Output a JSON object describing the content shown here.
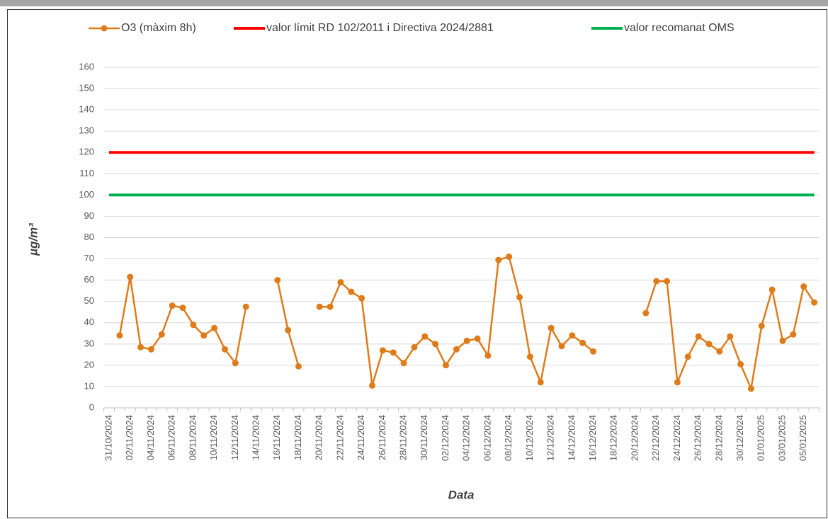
{
  "chart_data": {
    "type": "line",
    "x_label": "Data",
    "y_label": "µg/m³",
    "categories": [
      "31/10/2024",
      null,
      "02/11/2024",
      null,
      "04/11/2024",
      null,
      "06/11/2024",
      null,
      "08/11/2024",
      null,
      "10/11/2024",
      null,
      "12/11/2024",
      null,
      "14/11/2024",
      null,
      "16/11/2024",
      null,
      "18/11/2024",
      null,
      "20/11/2024",
      null,
      "22/11/2024",
      null,
      "24/11/2024",
      null,
      "26/11/2024",
      null,
      "28/11/2024",
      null,
      "30/11/2024",
      null,
      "02/12/2024",
      null,
      "04/12/2024",
      null,
      "06/12/2024",
      null,
      "08/12/2024",
      null,
      "10/12/2024",
      null,
      "12/12/2024",
      null,
      "14/12/2024",
      null,
      "16/12/2024",
      null,
      "18/12/2024",
      null,
      "20/12/2024",
      null,
      "22/12/2024",
      null,
      "24/12/2024",
      null,
      "26/12/2024",
      null,
      "28/12/2024",
      null,
      "30/12/2024",
      null,
      "01/01/2025",
      null,
      "03/01/2025",
      null,
      "05/01/2025",
      null
    ],
    "series": [
      {
        "name": "O3 (màxim 8h)",
        "color": "#e07b1a",
        "markers": true,
        "values": [
          null,
          34,
          61.5,
          28.5,
          27.5,
          34.5,
          48,
          47,
          39,
          34,
          37.5,
          27.5,
          21,
          47.5,
          null,
          null,
          60,
          36.5,
          19.5,
          null,
          47.5,
          47.5,
          59,
          54.5,
          51.5,
          10.5,
          27,
          26,
          21,
          28.5,
          33.5,
          30,
          20,
          27.5,
          31.5,
          32.5,
          24.5,
          69.5,
          71,
          52,
          24,
          12,
          37.5,
          29,
          34,
          30.5,
          26.5,
          null,
          null,
          null,
          null,
          44.5,
          59.5,
          59.5,
          12,
          24,
          33.5,
          30,
          26.5,
          33.5,
          20.5,
          9,
          38.5,
          55.5,
          31.5,
          34.5,
          57,
          49.5
        ]
      },
      {
        "name": "valor límit RD 102/2011 i Directiva 2024/2881",
        "color": "#ff0000",
        "markers": false,
        "values": [
          120,
          120,
          120,
          120,
          120,
          120,
          120,
          120,
          120,
          120,
          120,
          120,
          120,
          120,
          120,
          120,
          120,
          120,
          120,
          120,
          120,
          120,
          120,
          120,
          120,
          120,
          120,
          120,
          120,
          120,
          120,
          120,
          120,
          120,
          120,
          120,
          120,
          120,
          120,
          120,
          120,
          120,
          120,
          120,
          120,
          120,
          120,
          120,
          120,
          120,
          120,
          120,
          120,
          120,
          120,
          120,
          120,
          120,
          120,
          120,
          120,
          120,
          120,
          120,
          120,
          120,
          120,
          120
        ]
      },
      {
        "name": "valor recomanat OMS",
        "color": "#00b050",
        "markers": false,
        "values": [
          100,
          100,
          100,
          100,
          100,
          100,
          100,
          100,
          100,
          100,
          100,
          100,
          100,
          100,
          100,
          100,
          100,
          100,
          100,
          100,
          100,
          100,
          100,
          100,
          100,
          100,
          100,
          100,
          100,
          100,
          100,
          100,
          100,
          100,
          100,
          100,
          100,
          100,
          100,
          100,
          100,
          100,
          100,
          100,
          100,
          100,
          100,
          100,
          100,
          100,
          100,
          100,
          100,
          100,
          100,
          100,
          100,
          100,
          100,
          100,
          100,
          100,
          100,
          100,
          100,
          100,
          100,
          100
        ]
      }
    ],
    "ylim": [
      0,
      160
    ],
    "yticks": [
      0,
      10,
      20,
      30,
      40,
      50,
      60,
      70,
      80,
      90,
      100,
      110,
      120,
      130,
      140,
      150,
      160
    ],
    "grid": true,
    "legend": "top"
  }
}
